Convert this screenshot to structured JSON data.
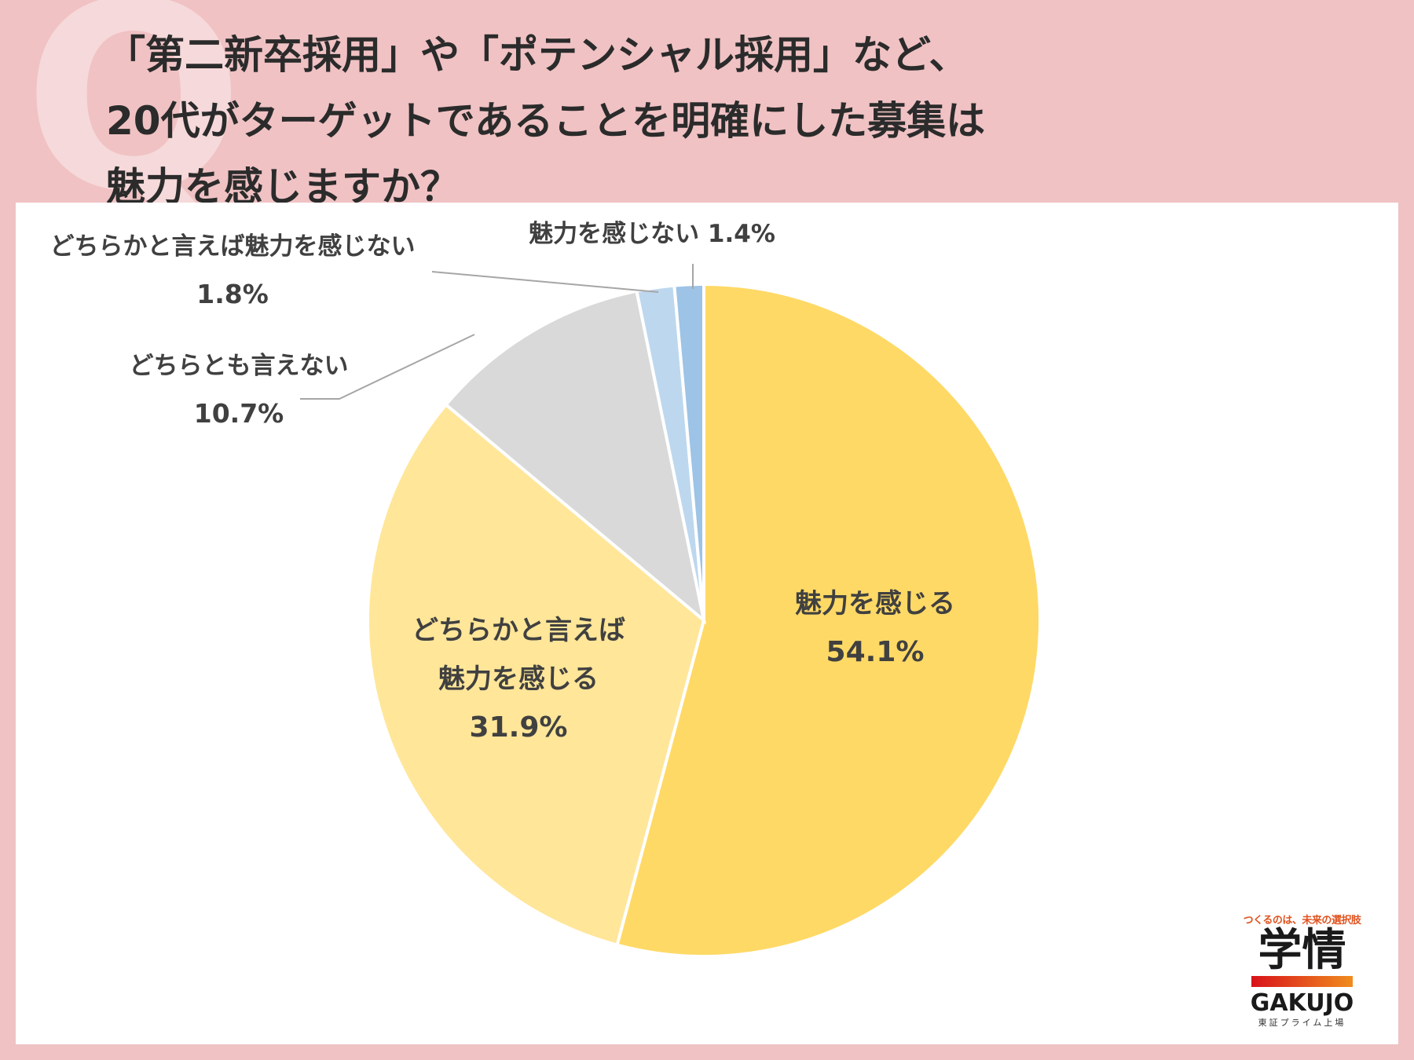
{
  "question": {
    "mark": "Q",
    "lines": [
      "「第二新卒採用」や「ポテンシャル採用」など、",
      "20代がターゲットであることを明確にした募集は",
      "魅力を感じますか？"
    ]
  },
  "chart_data": {
    "type": "pie",
    "start": "12 o'clock",
    "direction": "clockwise",
    "slices": [
      {
        "label_lines": [
          "魅力を感じる"
        ],
        "value": 54.1,
        "value_label": "54.1%",
        "color": "#ffd966"
      },
      {
        "label_lines": [
          "どちらかと言えば",
          "魅力を感じる"
        ],
        "value": 31.9,
        "value_label": "31.9%",
        "color": "#ffe699"
      },
      {
        "label_lines": [
          "どちらとも言えない"
        ],
        "value": 10.7,
        "value_label": "10.7%",
        "color": "#d9d9d9"
      },
      {
        "label_lines": [
          "どちらかと言えば魅力を感じない"
        ],
        "value": 1.8,
        "value_label": "1.8%",
        "color": "#bdd7ee"
      },
      {
        "label_lines": [
          "魅力を感じない"
        ],
        "value": 1.4,
        "value_label": "1.4%",
        "color": "#9dc3e6"
      }
    ]
  },
  "brand": {
    "tagline": "つくるのは、未来の選択肢",
    "name_kanji": "学情",
    "name_roman": "GAKUJO",
    "subtitle": "東証プライム上場"
  }
}
